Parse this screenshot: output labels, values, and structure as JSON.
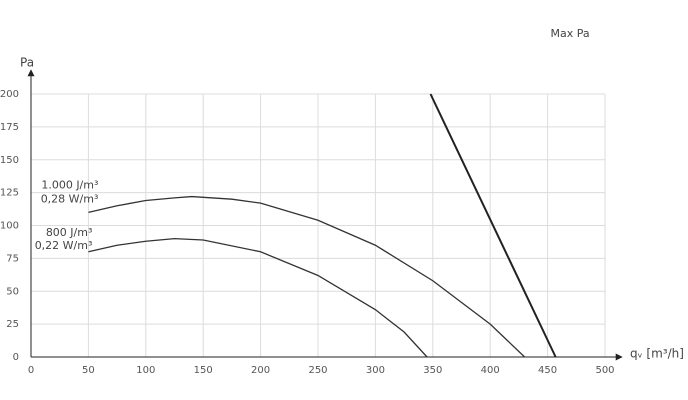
{
  "chart_data": {
    "type": "line",
    "y_label": "Pa",
    "x_label": "qᵥ [m³/h]",
    "xlim": [
      0,
      500
    ],
    "ylim": [
      0,
      200
    ],
    "xticks": [
      0,
      50,
      100,
      150,
      200,
      250,
      300,
      350,
      400,
      450,
      500
    ],
    "yticks": [
      0,
      25,
      50,
      75,
      100,
      125,
      150,
      175,
      200
    ],
    "grid": true,
    "series": [
      {
        "name": "1.000 J/m³",
        "subname": "0,28 W/m³",
        "color": "#333333",
        "x": [
          50,
          75,
          100,
          125,
          140,
          175,
          200,
          250,
          300,
          350,
          400,
          430
        ],
        "values": [
          110,
          115,
          119,
          121,
          122,
          120,
          117,
          104,
          85,
          58,
          25,
          0
        ]
      },
      {
        "name": "800 J/m³",
        "subname": "0,22 W/m³",
        "color": "#333333",
        "x": [
          50,
          75,
          100,
          125,
          150,
          200,
          250,
          300,
          325,
          345
        ],
        "values": [
          80,
          85,
          88,
          90,
          89,
          80,
          62,
          36,
          19,
          0
        ]
      },
      {
        "name": "Max Pa",
        "color": "#222222",
        "x": [
          348,
          457
        ],
        "values": [
          200,
          0
        ]
      }
    ]
  }
}
